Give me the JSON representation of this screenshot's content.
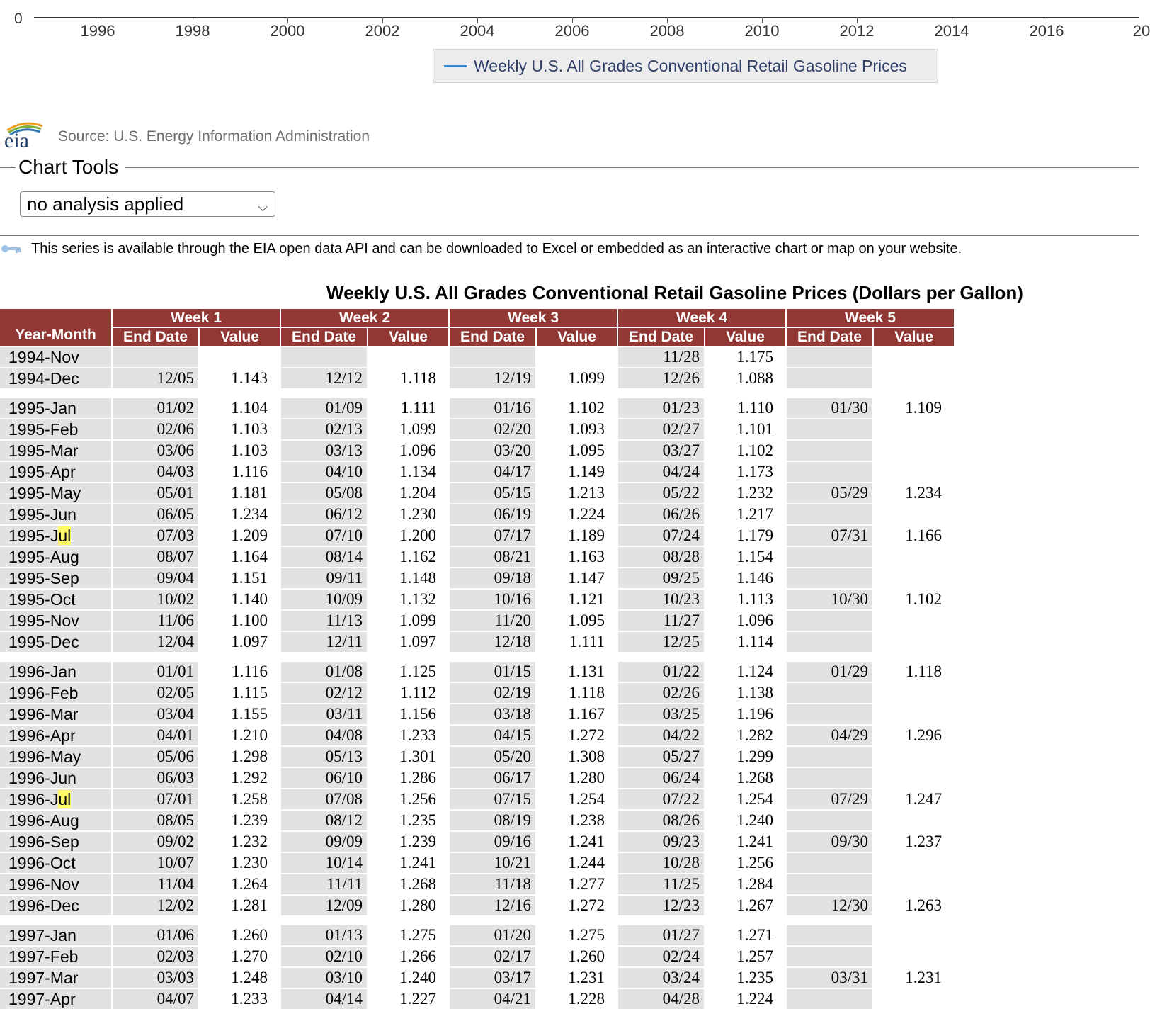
{
  "chart_axis": {
    "zero_label": "0",
    "year_labels": [
      "1996",
      "1998",
      "2000",
      "2002",
      "2004",
      "2006",
      "2008",
      "2010",
      "2012",
      "2014",
      "2016",
      "20"
    ]
  },
  "legend": {
    "label": "Weekly U.S. All Grades Conventional Retail Gasoline Prices",
    "color": "#3a86c8"
  },
  "source": {
    "logo_text": "eia",
    "text": "Source: U.S. Energy Information Administration"
  },
  "chart_tools": {
    "title": "Chart Tools",
    "analysis_select": {
      "value": "no analysis applied"
    }
  },
  "api_note": "This series is available through the EIA open data API and can be downloaded to Excel or embedded as an interactive chart or map on your website.",
  "table": {
    "title": "Weekly U.S. All Grades Conventional Retail Gasoline Prices (Dollars per Gallon)",
    "header_color": "#923834",
    "week_headers": [
      "Week 1",
      "Week 2",
      "Week 3",
      "Week 4",
      "Week 5"
    ],
    "year_month_header": "Year-Month",
    "end_date_header": "End Date",
    "value_header": "Value",
    "highlight_term": "ul",
    "groups": [
      [
        {
          "ym": "1994-Nov",
          "w": [
            [
              "",
              ""
            ],
            [
              "",
              ""
            ],
            [
              "",
              ""
            ],
            [
              "11/28",
              "1.175"
            ],
            [
              "",
              ""
            ]
          ]
        },
        {
          "ym": "1994-Dec",
          "w": [
            [
              "12/05",
              "1.143"
            ],
            [
              "12/12",
              "1.118"
            ],
            [
              "12/19",
              "1.099"
            ],
            [
              "12/26",
              "1.088"
            ],
            [
              "",
              ""
            ]
          ]
        }
      ],
      [
        {
          "ym": "1995-Jan",
          "w": [
            [
              "01/02",
              "1.104"
            ],
            [
              "01/09",
              "1.111"
            ],
            [
              "01/16",
              "1.102"
            ],
            [
              "01/23",
              "1.110"
            ],
            [
              "01/30",
              "1.109"
            ]
          ]
        },
        {
          "ym": "1995-Feb",
          "w": [
            [
              "02/06",
              "1.103"
            ],
            [
              "02/13",
              "1.099"
            ],
            [
              "02/20",
              "1.093"
            ],
            [
              "02/27",
              "1.101"
            ],
            [
              "",
              ""
            ]
          ]
        },
        {
          "ym": "1995-Mar",
          "w": [
            [
              "03/06",
              "1.103"
            ],
            [
              "03/13",
              "1.096"
            ],
            [
              "03/20",
              "1.095"
            ],
            [
              "03/27",
              "1.102"
            ],
            [
              "",
              ""
            ]
          ]
        },
        {
          "ym": "1995-Apr",
          "w": [
            [
              "04/03",
              "1.116"
            ],
            [
              "04/10",
              "1.134"
            ],
            [
              "04/17",
              "1.149"
            ],
            [
              "04/24",
              "1.173"
            ],
            [
              "",
              ""
            ]
          ]
        },
        {
          "ym": "1995-May",
          "w": [
            [
              "05/01",
              "1.181"
            ],
            [
              "05/08",
              "1.204"
            ],
            [
              "05/15",
              "1.213"
            ],
            [
              "05/22",
              "1.232"
            ],
            [
              "05/29",
              "1.234"
            ]
          ]
        },
        {
          "ym": "1995-Jun",
          "w": [
            [
              "06/05",
              "1.234"
            ],
            [
              "06/12",
              "1.230"
            ],
            [
              "06/19",
              "1.224"
            ],
            [
              "06/26",
              "1.217"
            ],
            [
              "",
              ""
            ]
          ]
        },
        {
          "ym": "1995-Jul",
          "w": [
            [
              "07/03",
              "1.209"
            ],
            [
              "07/10",
              "1.200"
            ],
            [
              "07/17",
              "1.189"
            ],
            [
              "07/24",
              "1.179"
            ],
            [
              "07/31",
              "1.166"
            ]
          ]
        },
        {
          "ym": "1995-Aug",
          "w": [
            [
              "08/07",
              "1.164"
            ],
            [
              "08/14",
              "1.162"
            ],
            [
              "08/21",
              "1.163"
            ],
            [
              "08/28",
              "1.154"
            ],
            [
              "",
              ""
            ]
          ]
        },
        {
          "ym": "1995-Sep",
          "w": [
            [
              "09/04",
              "1.151"
            ],
            [
              "09/11",
              "1.148"
            ],
            [
              "09/18",
              "1.147"
            ],
            [
              "09/25",
              "1.146"
            ],
            [
              "",
              ""
            ]
          ]
        },
        {
          "ym": "1995-Oct",
          "w": [
            [
              "10/02",
              "1.140"
            ],
            [
              "10/09",
              "1.132"
            ],
            [
              "10/16",
              "1.121"
            ],
            [
              "10/23",
              "1.113"
            ],
            [
              "10/30",
              "1.102"
            ]
          ]
        },
        {
          "ym": "1995-Nov",
          "w": [
            [
              "11/06",
              "1.100"
            ],
            [
              "11/13",
              "1.099"
            ],
            [
              "11/20",
              "1.095"
            ],
            [
              "11/27",
              "1.096"
            ],
            [
              "",
              ""
            ]
          ]
        },
        {
          "ym": "1995-Dec",
          "w": [
            [
              "12/04",
              "1.097"
            ],
            [
              "12/11",
              "1.097"
            ],
            [
              "12/18",
              "1.111"
            ],
            [
              "12/25",
              "1.114"
            ],
            [
              "",
              ""
            ]
          ]
        }
      ],
      [
        {
          "ym": "1996-Jan",
          "w": [
            [
              "01/01",
              "1.116"
            ],
            [
              "01/08",
              "1.125"
            ],
            [
              "01/15",
              "1.131"
            ],
            [
              "01/22",
              "1.124"
            ],
            [
              "01/29",
              "1.118"
            ]
          ]
        },
        {
          "ym": "1996-Feb",
          "w": [
            [
              "02/05",
              "1.115"
            ],
            [
              "02/12",
              "1.112"
            ],
            [
              "02/19",
              "1.118"
            ],
            [
              "02/26",
              "1.138"
            ],
            [
              "",
              ""
            ]
          ]
        },
        {
          "ym": "1996-Mar",
          "w": [
            [
              "03/04",
              "1.155"
            ],
            [
              "03/11",
              "1.156"
            ],
            [
              "03/18",
              "1.167"
            ],
            [
              "03/25",
              "1.196"
            ],
            [
              "",
              ""
            ]
          ]
        },
        {
          "ym": "1996-Apr",
          "w": [
            [
              "04/01",
              "1.210"
            ],
            [
              "04/08",
              "1.233"
            ],
            [
              "04/15",
              "1.272"
            ],
            [
              "04/22",
              "1.282"
            ],
            [
              "04/29",
              "1.296"
            ]
          ]
        },
        {
          "ym": "1996-May",
          "w": [
            [
              "05/06",
              "1.298"
            ],
            [
              "05/13",
              "1.301"
            ],
            [
              "05/20",
              "1.308"
            ],
            [
              "05/27",
              "1.299"
            ],
            [
              "",
              ""
            ]
          ]
        },
        {
          "ym": "1996-Jun",
          "w": [
            [
              "06/03",
              "1.292"
            ],
            [
              "06/10",
              "1.286"
            ],
            [
              "06/17",
              "1.280"
            ],
            [
              "06/24",
              "1.268"
            ],
            [
              "",
              ""
            ]
          ]
        },
        {
          "ym": "1996-Jul",
          "w": [
            [
              "07/01",
              "1.258"
            ],
            [
              "07/08",
              "1.256"
            ],
            [
              "07/15",
              "1.254"
            ],
            [
              "07/22",
              "1.254"
            ],
            [
              "07/29",
              "1.247"
            ]
          ]
        },
        {
          "ym": "1996-Aug",
          "w": [
            [
              "08/05",
              "1.239"
            ],
            [
              "08/12",
              "1.235"
            ],
            [
              "08/19",
              "1.238"
            ],
            [
              "08/26",
              "1.240"
            ],
            [
              "",
              ""
            ]
          ]
        },
        {
          "ym": "1996-Sep",
          "w": [
            [
              "09/02",
              "1.232"
            ],
            [
              "09/09",
              "1.239"
            ],
            [
              "09/16",
              "1.241"
            ],
            [
              "09/23",
              "1.241"
            ],
            [
              "09/30",
              "1.237"
            ]
          ]
        },
        {
          "ym": "1996-Oct",
          "w": [
            [
              "10/07",
              "1.230"
            ],
            [
              "10/14",
              "1.241"
            ],
            [
              "10/21",
              "1.244"
            ],
            [
              "10/28",
              "1.256"
            ],
            [
              "",
              ""
            ]
          ]
        },
        {
          "ym": "1996-Nov",
          "w": [
            [
              "11/04",
              "1.264"
            ],
            [
              "11/11",
              "1.268"
            ],
            [
              "11/18",
              "1.277"
            ],
            [
              "11/25",
              "1.284"
            ],
            [
              "",
              ""
            ]
          ]
        },
        {
          "ym": "1996-Dec",
          "w": [
            [
              "12/02",
              "1.281"
            ],
            [
              "12/09",
              "1.280"
            ],
            [
              "12/16",
              "1.272"
            ],
            [
              "12/23",
              "1.267"
            ],
            [
              "12/30",
              "1.263"
            ]
          ]
        }
      ],
      [
        {
          "ym": "1997-Jan",
          "w": [
            [
              "01/06",
              "1.260"
            ],
            [
              "01/13",
              "1.275"
            ],
            [
              "01/20",
              "1.275"
            ],
            [
              "01/27",
              "1.271"
            ],
            [
              "",
              ""
            ]
          ]
        },
        {
          "ym": "1997-Feb",
          "w": [
            [
              "02/03",
              "1.270"
            ],
            [
              "02/10",
              "1.266"
            ],
            [
              "02/17",
              "1.260"
            ],
            [
              "02/24",
              "1.257"
            ],
            [
              "",
              ""
            ]
          ]
        },
        {
          "ym": "1997-Mar",
          "w": [
            [
              "03/03",
              "1.248"
            ],
            [
              "03/10",
              "1.240"
            ],
            [
              "03/17",
              "1.231"
            ],
            [
              "03/24",
              "1.235"
            ],
            [
              "03/31",
              "1.231"
            ]
          ]
        },
        {
          "ym": "1997-Apr",
          "w": [
            [
              "04/07",
              "1.233"
            ],
            [
              "04/14",
              "1.227"
            ],
            [
              "04/21",
              "1.228"
            ],
            [
              "04/28",
              "1.224"
            ],
            [
              "",
              ""
            ]
          ]
        }
      ]
    ]
  }
}
